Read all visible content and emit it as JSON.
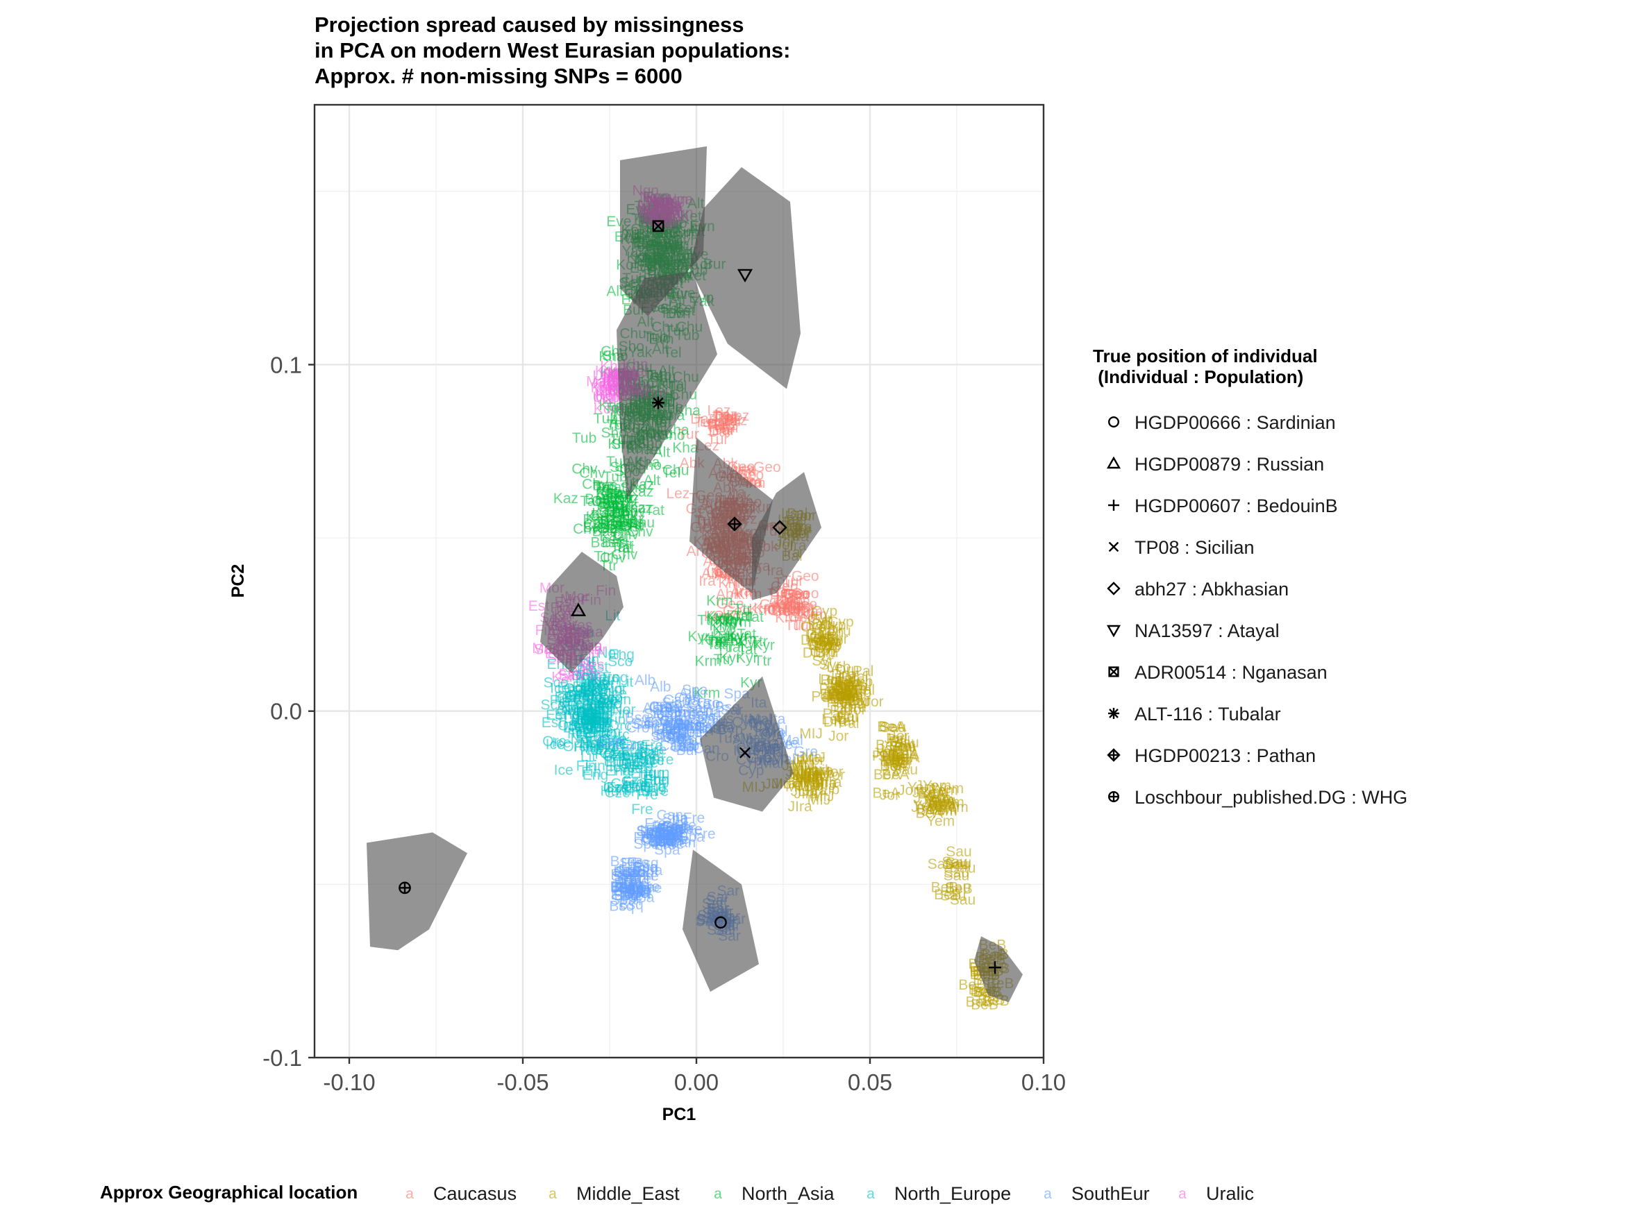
{
  "chart_data": {
    "type": "scatter",
    "title": [
      "Projection spread caused by missingness",
      "in PCA on modern West Eurasian populations:",
      "Approx. # non-missing SNPs = 6000"
    ],
    "xlabel": "PC1",
    "ylabel": "PC2",
    "xlim": [
      -0.11,
      0.1
    ],
    "ylim": [
      -0.1,
      0.175
    ],
    "x_ticks": [
      -0.1,
      -0.05,
      0.0,
      0.05,
      0.1
    ],
    "x_tick_labels": [
      "-0.10",
      "-0.05",
      "0.00",
      "0.05",
      "0.10"
    ],
    "y_ticks": [
      -0.1,
      0.0,
      0.1
    ],
    "y_tick_labels": [
      "-0.1",
      "0.0",
      "0.1"
    ],
    "grid": true,
    "region_legend": {
      "title": "Approx Geographical location",
      "placement": "bottom",
      "key_glyph": "a",
      "entries": [
        {
          "name": "Caucasus",
          "color": "#F8766D"
        },
        {
          "name": "Middle_East",
          "color": "#B79F00"
        },
        {
          "name": "North_Asia",
          "color": "#00BA38"
        },
        {
          "name": "North_Europe",
          "color": "#00BFC4"
        },
        {
          "name": "SouthEur",
          "color": "#619CFF"
        },
        {
          "name": "Uralic",
          "color": "#F564E3"
        }
      ]
    },
    "individual_legend": {
      "title": [
        "True position of individual",
        " (Individual : Population)"
      ],
      "placement": "right",
      "entries": [
        {
          "label": "HGDP00666 : Sardinian",
          "shape": "circle",
          "x": 0.007,
          "y": -0.061
        },
        {
          "label": "HGDP00879 : Russian",
          "shape": "triangle",
          "x": -0.034,
          "y": 0.029
        },
        {
          "label": "HGDP00607 : BedouinB",
          "shape": "plus",
          "x": 0.086,
          "y": -0.074
        },
        {
          "label": "TP08 : Sicilian",
          "shape": "cross",
          "x": 0.014,
          "y": -0.012
        },
        {
          "label": "abh27 : Abkhasian",
          "shape": "diamond",
          "x": 0.024,
          "y": 0.053
        },
        {
          "label": "NA13597 : Atayal",
          "shape": "triangle-down",
          "x": 0.014,
          "y": 0.126
        },
        {
          "label": "ADR00514 : Nganasan",
          "shape": "square-cross",
          "x": -0.011,
          "y": 0.14
        },
        {
          "label": "ALT-116 : Tubalar",
          "shape": "asterisk",
          "x": -0.011,
          "y": 0.089
        },
        {
          "label": "HGDP00213 : Pathan",
          "shape": "diamond-plus",
          "x": 0.011,
          "y": 0.054
        },
        {
          "label": "Loschbour_published.DG : WHG",
          "shape": "circle-plus",
          "x": -0.084,
          "y": -0.051
        }
      ]
    },
    "hulls": [
      {
        "individual": "HGDP00666 : Sardinian",
        "points": [
          [
            -0.001,
            -0.04
          ],
          [
            0.013,
            -0.05
          ],
          [
            0.018,
            -0.073
          ],
          [
            0.004,
            -0.081
          ],
          [
            -0.004,
            -0.063
          ]
        ]
      },
      {
        "individual": "HGDP00879 : Russian",
        "points": [
          [
            -0.033,
            0.046
          ],
          [
            -0.023,
            0.039
          ],
          [
            -0.021,
            0.03
          ],
          [
            -0.027,
            0.021
          ],
          [
            -0.036,
            0.011
          ],
          [
            -0.045,
            0.02
          ],
          [
            -0.043,
            0.035
          ]
        ]
      },
      {
        "individual": "HGDP00607 : BedouinB",
        "points": [
          [
            0.082,
            -0.065
          ],
          [
            0.088,
            -0.068
          ],
          [
            0.094,
            -0.076
          ],
          [
            0.09,
            -0.084
          ],
          [
            0.084,
            -0.082
          ],
          [
            0.08,
            -0.072
          ]
        ]
      },
      {
        "individual": "TP08 : Sicilian",
        "points": [
          [
            0.019,
            0.01
          ],
          [
            0.028,
            -0.018
          ],
          [
            0.019,
            -0.029
          ],
          [
            0.005,
            -0.025
          ],
          [
            0.001,
            -0.008
          ]
        ]
      },
      {
        "individual": "abh27 : Abkhasian",
        "points": [
          [
            0.031,
            0.069
          ],
          [
            0.036,
            0.053
          ],
          [
            0.023,
            0.034
          ],
          [
            0.016,
            0.032
          ],
          [
            0.016,
            0.05
          ],
          [
            0.023,
            0.063
          ]
        ]
      },
      {
        "individual": "NA13597 : Atayal",
        "points": [
          [
            0.013,
            0.157
          ],
          [
            0.027,
            0.147
          ],
          [
            0.03,
            0.109
          ],
          [
            0.026,
            0.093
          ],
          [
            0.009,
            0.106
          ],
          [
            -0.002,
            0.128
          ],
          [
            0.002,
            0.145
          ]
        ]
      },
      {
        "individual": "ADR00514 : Nganasan",
        "points": [
          [
            -0.022,
            0.159
          ],
          [
            0.003,
            0.163
          ],
          [
            0.002,
            0.132
          ],
          [
            -0.014,
            0.114
          ],
          [
            -0.022,
            0.122
          ]
        ]
      },
      {
        "individual": "ALT-116 : Tubalar",
        "points": [
          [
            -0.015,
            0.125
          ],
          [
            -0.001,
            0.127
          ],
          [
            0.006,
            0.103
          ],
          [
            -0.008,
            0.08
          ],
          [
            -0.02,
            0.061
          ],
          [
            -0.022,
            0.082
          ],
          [
            -0.023,
            0.11
          ]
        ]
      },
      {
        "individual": "HGDP00213 : Pathan",
        "points": [
          [
            0.0,
            0.079
          ],
          [
            0.008,
            0.072
          ],
          [
            0.022,
            0.061
          ],
          [
            0.016,
            0.034
          ],
          [
            0.007,
            0.041
          ],
          [
            -0.002,
            0.049
          ]
        ]
      },
      {
        "individual": "Loschbour_published.DG : WHG",
        "points": [
          [
            -0.095,
            -0.038
          ],
          [
            -0.076,
            -0.035
          ],
          [
            -0.066,
            -0.041
          ],
          [
            -0.077,
            -0.063
          ],
          [
            -0.086,
            -0.069
          ],
          [
            -0.094,
            -0.068
          ]
        ]
      }
    ],
    "clusters": [
      {
        "region": "Caucasus",
        "labels": [
          "Abk",
          "Arm",
          "Geo",
          "Lez",
          "Tur",
          "Ira",
          "Krm"
        ],
        "center": [
          0.01,
          0.05
        ],
        "spread": [
          0.008,
          0.018
        ],
        "count": 160
      },
      {
        "region": "Caucasus",
        "labels": [
          "Tur",
          "Krm",
          "Geo"
        ],
        "center": [
          0.028,
          0.03
        ],
        "spread": [
          0.006,
          0.005
        ],
        "count": 40
      },
      {
        "region": "Caucasus",
        "labels": [
          "Tur",
          "Lez",
          "Dar"
        ],
        "center": [
          0.007,
          0.082
        ],
        "spread": [
          0.005,
          0.004
        ],
        "count": 25
      },
      {
        "region": "Middle_East",
        "labels": [
          "Dru",
          "Jor",
          "Pal",
          "Leb",
          "Syr"
        ],
        "center": [
          0.042,
          0.003
        ],
        "spread": [
          0.005,
          0.008
        ],
        "count": 70
      },
      {
        "region": "Middle_East",
        "labels": [
          "Pal",
          "Jor",
          "Sau",
          "BeA"
        ],
        "center": [
          0.057,
          -0.014
        ],
        "spread": [
          0.004,
          0.007
        ],
        "count": 40
      },
      {
        "region": "Middle_East",
        "labels": [
          "Yem",
          "JYem",
          "BeA"
        ],
        "center": [
          0.069,
          -0.027
        ],
        "spread": [
          0.004,
          0.005
        ],
        "count": 25
      },
      {
        "region": "Middle_East",
        "labels": [
          "Sau",
          "BeB",
          "Sau"
        ],
        "center": [
          0.075,
          -0.05
        ],
        "spread": [
          0.003,
          0.008
        ],
        "count": 15
      },
      {
        "region": "Middle_East",
        "labels": [
          "BeB"
        ],
        "center": [
          0.084,
          -0.078
        ],
        "spread": [
          0.004,
          0.007
        ],
        "count": 25
      },
      {
        "region": "Middle_East",
        "labels": [
          "JMor",
          "JLib",
          "Lib",
          "MIJ",
          "JIra"
        ],
        "center": [
          0.032,
          -0.02
        ],
        "spread": [
          0.007,
          0.007
        ],
        "count": 45
      },
      {
        "region": "Middle_East",
        "labels": [
          "Dru",
          "Leb",
          "Syr",
          "Cyp"
        ],
        "center": [
          0.036,
          0.02
        ],
        "spread": [
          0.004,
          0.007
        ],
        "count": 35
      },
      {
        "region": "Middle_East",
        "labels": [
          "Jor",
          "Ira",
          "Bal"
        ],
        "center": [
          0.028,
          0.05
        ],
        "spread": [
          0.004,
          0.006
        ],
        "count": 25
      },
      {
        "region": "North_Asia",
        "labels": [
          "Ket",
          "Sel",
          "Chu",
          "Alt",
          "Tub",
          "Yak",
          "Eve",
          "Bur",
          "Kor",
          "Tuv",
          "Evn"
        ],
        "center": [
          -0.01,
          0.13
        ],
        "spread": [
          0.01,
          0.015
        ],
        "count": 170
      },
      {
        "region": "North_Asia",
        "labels": [
          "Chu",
          "Tub",
          "Alt",
          "Sho",
          "Kha",
          "Tel"
        ],
        "center": [
          -0.015,
          0.085
        ],
        "spread": [
          0.01,
          0.018
        ],
        "count": 130
      },
      {
        "region": "North_Asia",
        "labels": [
          "Chv",
          "Bas",
          "Tat",
          "Ttr",
          "Kaz"
        ],
        "center": [
          -0.023,
          0.055
        ],
        "spread": [
          0.008,
          0.01
        ],
        "count": 80
      },
      {
        "region": "North_Asia",
        "labels": [
          "Ttr",
          "Tat",
          "Krm",
          "Kyr"
        ],
        "center": [
          0.01,
          0.02
        ],
        "spread": [
          0.01,
          0.01
        ],
        "count": 40
      },
      {
        "region": "North_Europe",
        "labels": [
          "Nor",
          "Ice",
          "Orc",
          "Eng",
          "Sco",
          "Lit",
          "Est",
          "Fin"
        ],
        "center": [
          -0.03,
          0.0
        ],
        "spread": [
          0.008,
          0.014
        ],
        "count": 160
      },
      {
        "region": "North_Europe",
        "labels": [
          "Fre",
          "Ice",
          "Eng",
          "Hun",
          "Cze"
        ],
        "center": [
          -0.018,
          -0.018
        ],
        "spread": [
          0.008,
          0.008
        ],
        "count": 60
      },
      {
        "region": "SouthEur",
        "labels": [
          "Gre",
          "Ita",
          "Alb",
          "Bul",
          "Cro",
          "Spa",
          "Bsq",
          "Sar",
          "Can",
          "Tus",
          "Sic"
        ],
        "center": [
          -0.005,
          -0.005
        ],
        "spread": [
          0.012,
          0.008
        ],
        "count": 90
      },
      {
        "region": "SouthEur",
        "labels": [
          "Spa",
          "Can",
          "Ita",
          "Fre"
        ],
        "center": [
          -0.008,
          -0.037
        ],
        "spread": [
          0.006,
          0.005
        ],
        "count": 60
      },
      {
        "region": "SouthEur",
        "labels": [
          "Bsq",
          "Spa",
          "Fre"
        ],
        "center": [
          -0.018,
          -0.051
        ],
        "spread": [
          0.004,
          0.006
        ],
        "count": 50
      },
      {
        "region": "SouthEur",
        "labels": [
          "Sar"
        ],
        "center": [
          0.007,
          -0.061
        ],
        "spread": [
          0.004,
          0.005
        ],
        "count": 30
      },
      {
        "region": "SouthEur",
        "labels": [
          "Gre",
          "Cyp",
          "Ita",
          "Mal"
        ],
        "center": [
          0.02,
          -0.01
        ],
        "spread": [
          0.008,
          0.008
        ],
        "count": 40
      },
      {
        "region": "Uralic",
        "labels": [
          "Ng",
          "Nga",
          "Ngn"
        ],
        "center": [
          -0.01,
          0.143
        ],
        "spread": [
          0.004,
          0.005
        ],
        "count": 40
      },
      {
        "region": "Uralic",
        "labels": [
          "Man",
          "Mar",
          "Kom",
          "Udm",
          "Khn"
        ],
        "center": [
          -0.022,
          0.093
        ],
        "spread": [
          0.006,
          0.006
        ],
        "count": 40
      },
      {
        "region": "Uralic",
        "labels": [
          "Fin",
          "Saa",
          "Kar",
          "Ves",
          "Est",
          "Mor"
        ],
        "center": [
          -0.037,
          0.02
        ],
        "spread": [
          0.008,
          0.014
        ],
        "count": 60
      }
    ]
  }
}
